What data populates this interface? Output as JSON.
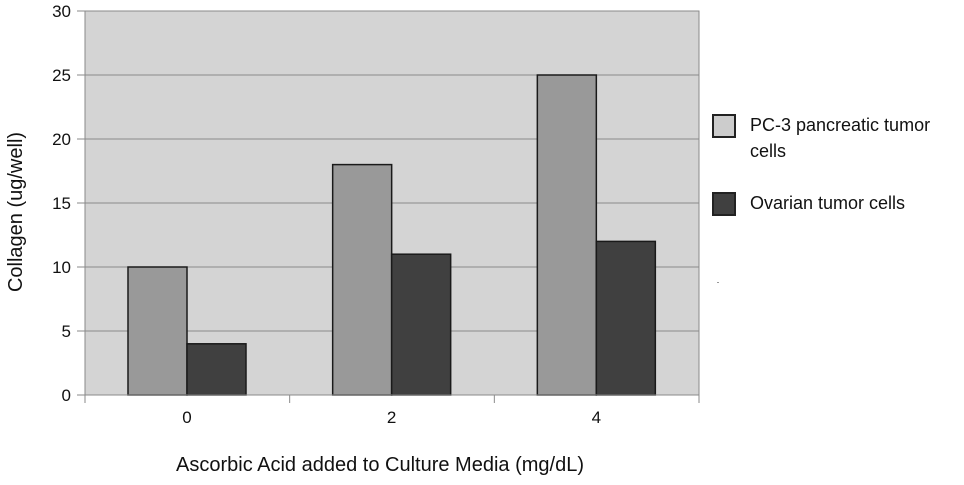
{
  "chart_data": {
    "type": "bar",
    "title": "",
    "xlabel": "Ascorbic Acid added to Culture Media (mg/dL)",
    "ylabel": "Collagen (ug/well)",
    "categories": [
      "0",
      "2",
      "4"
    ],
    "ylim": [
      0,
      30
    ],
    "yticks": [
      "0",
      "5",
      "10",
      "15",
      "20",
      "25",
      "30"
    ],
    "grid": true,
    "legend_position": "right",
    "series": [
      {
        "name": "PC-3 pancreatic tumor cells",
        "values": [
          10,
          18,
          25
        ],
        "color": "#999999"
      },
      {
        "name": "Ovarian tumor cells",
        "values": [
          4,
          11,
          12
        ],
        "color": "#404040"
      }
    ]
  }
}
